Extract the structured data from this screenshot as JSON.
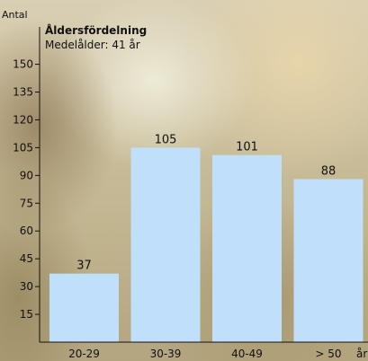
{
  "chart_data": {
    "type": "bar",
    "title": "Åldersfördelning",
    "subtitle": "Medelålder: 41 år",
    "ylabel": "Antal",
    "xlabel": "år",
    "categories": [
      "20-29",
      "30-39",
      "40-49",
      "> 50"
    ],
    "values": [
      37,
      105,
      101,
      88
    ],
    "data_labels": [
      "37",
      "105",
      "101",
      "88"
    ],
    "yticks": [
      15,
      30,
      45,
      60,
      75,
      90,
      105,
      120,
      135,
      150
    ],
    "ylim": [
      0,
      160
    ],
    "grid": false,
    "legend": "none",
    "colors": {
      "bar": "#bfdffa",
      "axis": "#111111"
    }
  }
}
